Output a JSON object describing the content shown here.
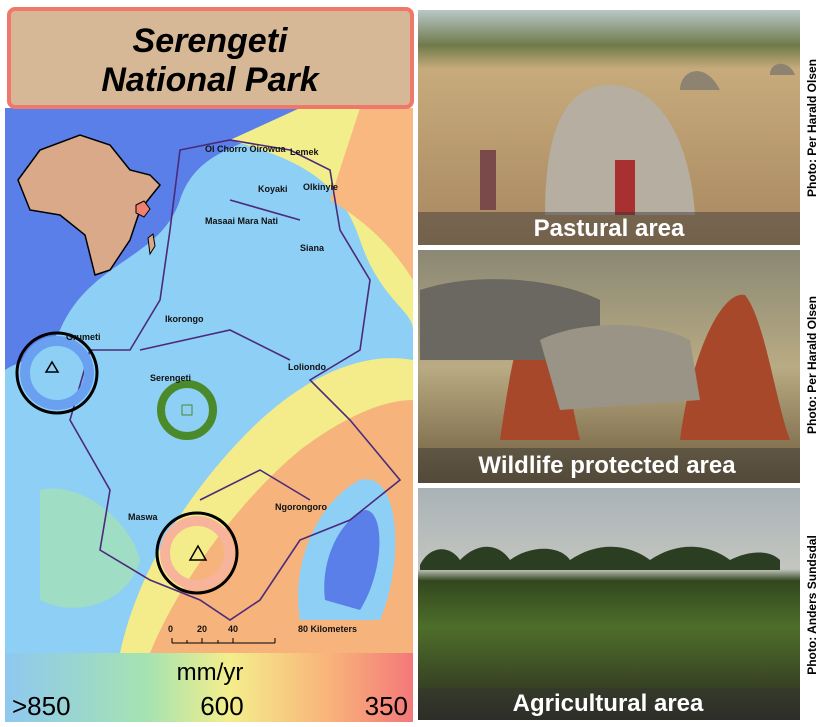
{
  "header": {
    "title_line1": "Serengeti",
    "title_line2": "National Park"
  },
  "map": {
    "labels": [
      "Ol Chorro Oirowua",
      "Lemek",
      "Koyaki",
      "Olkinyie",
      "Masaai Mara Nati",
      "Siana",
      "Ikorongo",
      "Grumeti",
      "Serengeti",
      "Loliondo",
      "Maswa",
      "Ngorongoro"
    ],
    "scale_bar": [
      "0",
      "20",
      "40",
      "80 Kilometers"
    ]
  },
  "legend": {
    "unit": "mm/yr",
    "labels": [
      ">850",
      "600",
      "350"
    ]
  },
  "photos": [
    {
      "caption": "Pastural area",
      "credit": "Photo: Per Harald Olsen"
    },
    {
      "caption": "Wildlife protected area",
      "credit": "Photo: Per Harald Olsen"
    },
    {
      "caption": "Agricultural area",
      "credit": "Photo: Anders Sundsdal"
    }
  ]
}
